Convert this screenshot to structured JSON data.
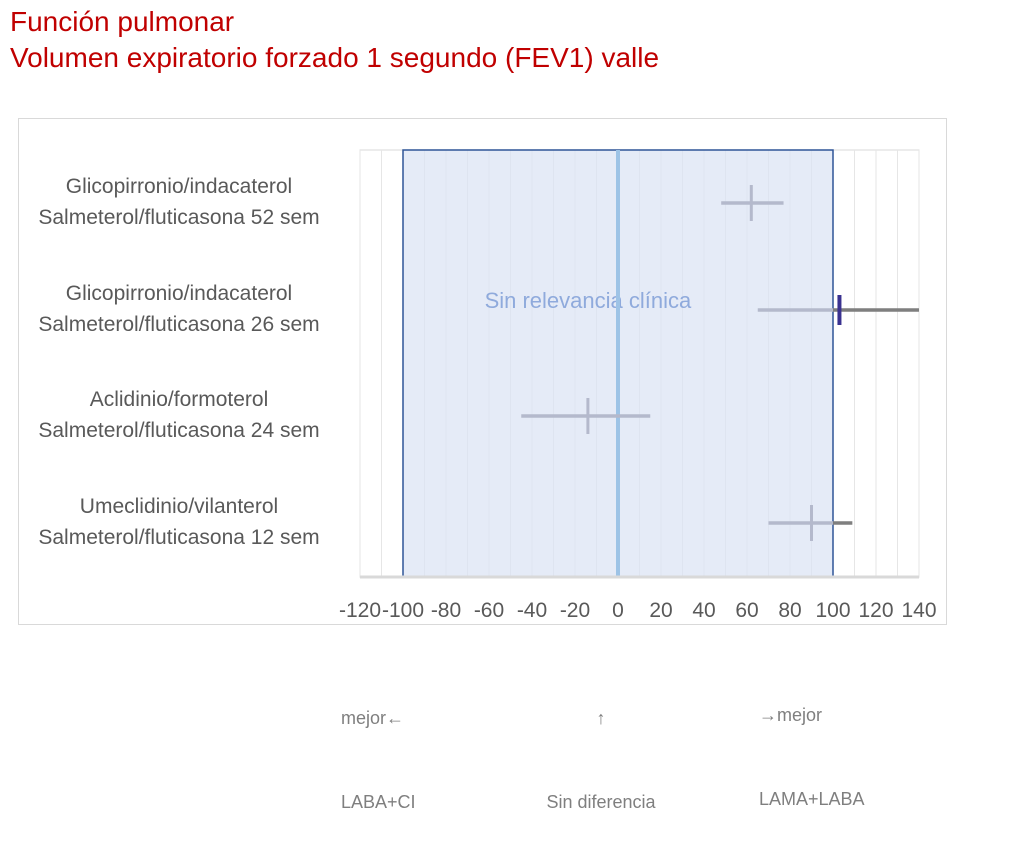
{
  "title": {
    "line1": "Función pulmonar",
    "line2": "Volumen expiratorio forzado 1 segundo (FEV1) valle"
  },
  "chart_data": {
    "type": "forest",
    "xlim": [
      -120,
      140
    ],
    "x_ticks": [
      "-120",
      "-100",
      "-80",
      "-60",
      "-40",
      "-20",
      "0",
      "20",
      "40",
      "60",
      "80",
      "100",
      "120",
      "140"
    ],
    "grid": "vertical",
    "band": {
      "label": "Sin relevancia clínica",
      "from": -100,
      "to": 100
    },
    "reference_line": 0,
    "rows": [
      {
        "line1": "Glicopirronio/indacaterol",
        "line2": "Salmeterol/fluticasona 52 sem",
        "estimate": 62,
        "ci_low": 48,
        "ci_high": 77
      },
      {
        "line1": "Glicopirronio/indacaterol",
        "line2": "Salmeterol/fluticasona 26 sem",
        "estimate": 103,
        "ci_low": 65,
        "ci_high": 140
      },
      {
        "line1": "Aclidinio/formoterol",
        "line2": "Salmeterol/fluticasona 24 sem",
        "estimate": -14,
        "ci_low": -45,
        "ci_high": 15
      },
      {
        "line1": "Umeclidinio/vilanterol",
        "line2": "Salmeterol/fluticasona 12 sem",
        "estimate": 90,
        "ci_low": 70,
        "ci_high": 109
      }
    ]
  },
  "footnotes": {
    "left_line1": "mejor←",
    "left_line2": "LABA+CI",
    "center_line1": "↑",
    "center_line2": "Sin diferencia",
    "right_line1": "→mejor",
    "right_line2": "LAMA+LABA"
  },
  "colors": {
    "title": "#c00000",
    "band_fill": "#dae3f3",
    "band_border": "#2f5597",
    "band_text": "#8faadc",
    "ci_light": "#b4b9cc",
    "ci_dark": "#7f7f7f",
    "estimate_dark": "#3a3290",
    "zero_line": "#9dc3e6",
    "grid": "#e6e6e6",
    "axis": "#d9d9d9",
    "text": "#595959"
  }
}
